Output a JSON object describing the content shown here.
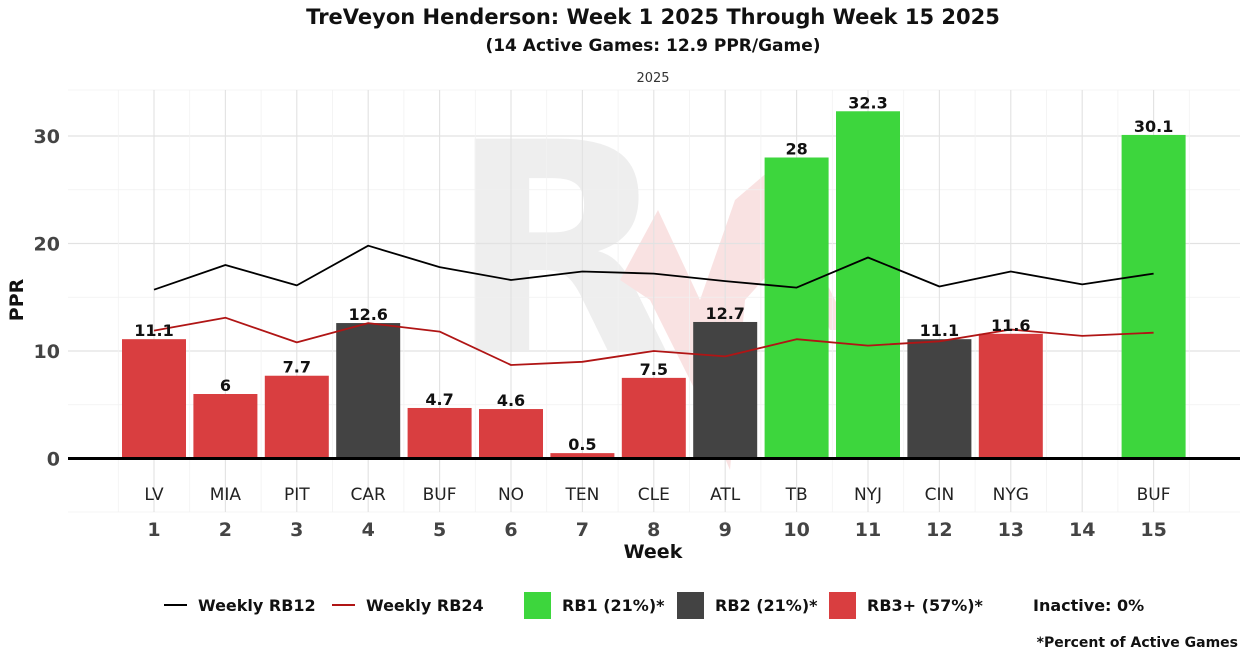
{
  "chart_data": {
    "type": "bar",
    "title": "TreVeyon Henderson: Week 1 2025 Through Week 15 2025",
    "subtitle": "(14 Active Games: 12.9 PPR/Game)",
    "facet_label": "2025",
    "xlabel": "Week",
    "ylabel": "PPR",
    "ylim": [
      0,
      34
    ],
    "yticks": [
      "0",
      "10",
      "20",
      "30"
    ],
    "weeks": [
      "1",
      "2",
      "3",
      "4",
      "5",
      "6",
      "7",
      "8",
      "9",
      "10",
      "11",
      "12",
      "13",
      "14",
      "15"
    ],
    "opponents": [
      "LV",
      "MIA",
      "PIT",
      "CAR",
      "BUF",
      "NO",
      "TEN",
      "CLE",
      "ATL",
      "TB",
      "NYJ",
      "CIN",
      "NYG",
      "",
      "BUF"
    ],
    "values": [
      11.1,
      6,
      7.7,
      12.6,
      4.7,
      4.6,
      0.5,
      7.5,
      12.7,
      28,
      32.3,
      11.1,
      11.6,
      null,
      30.1
    ],
    "value_labels": [
      "11.1",
      "6",
      "7.7",
      "12.6",
      "4.7",
      "4.6",
      "0.5",
      "7.5",
      "12.7",
      "28",
      "32.3",
      "11.1",
      "11.6",
      "",
      "30.1"
    ],
    "tiers": [
      "RB3+",
      "RB3+",
      "RB3+",
      "RB2",
      "RB3+",
      "RB3+",
      "RB3+",
      "RB3+",
      "RB2",
      "RB1",
      "RB1",
      "RB2",
      "RB3+",
      null,
      "RB1"
    ],
    "tier_colors": {
      "RB1": "#3dd63d",
      "RB2": "#434343",
      "RB3+": "#d93e40"
    },
    "series": [
      {
        "name": "Weekly RB12",
        "color": "#000000",
        "values": [
          15.7,
          18.0,
          16.1,
          19.8,
          17.8,
          16.6,
          17.4,
          17.2,
          16.5,
          15.9,
          18.7,
          16.0,
          17.4,
          16.2,
          17.2
        ]
      },
      {
        "name": "Weekly RB24",
        "color": "#b01515",
        "values": [
          11.9,
          13.1,
          10.8,
          12.6,
          11.8,
          8.7,
          9.0,
          10.0,
          9.5,
          11.1,
          10.5,
          10.9,
          12.0,
          11.4,
          11.7
        ]
      }
    ],
    "legend": {
      "line_rb12": "Weekly RB12",
      "line_rb24": "Weekly RB24",
      "rb1": "RB1 (21%)*",
      "rb2": "RB2 (21%)*",
      "rb3": "RB3+ (57%)*",
      "inactive": "Inactive: 0%"
    },
    "footnote": "*Percent of Active Games"
  }
}
